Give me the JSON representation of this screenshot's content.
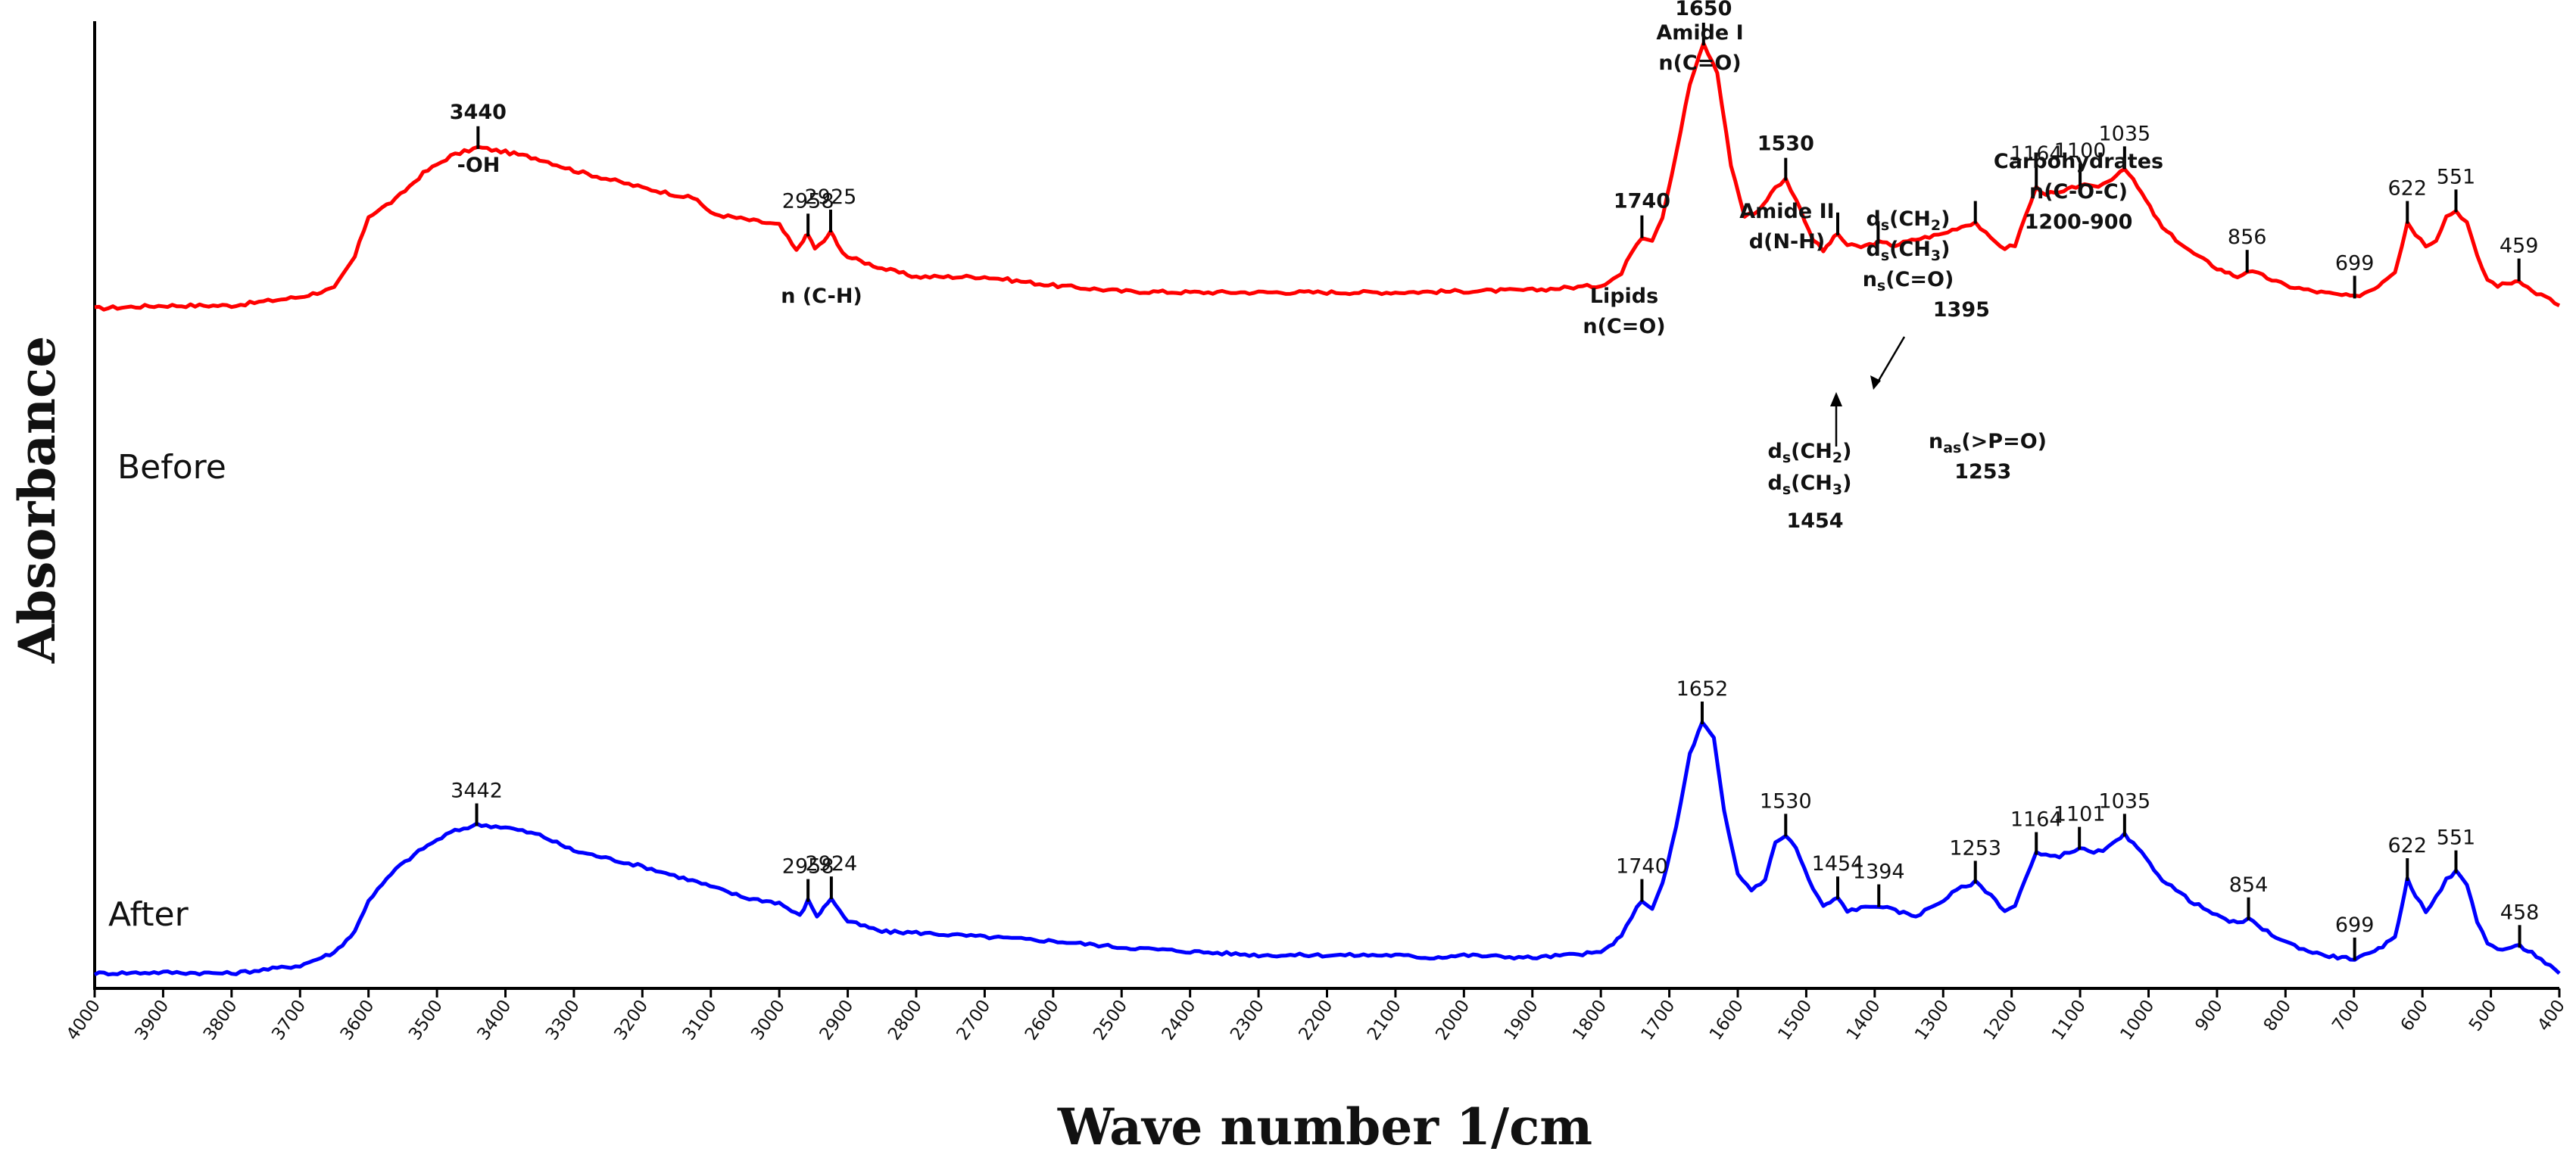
{
  "chart_data": {
    "type": "line",
    "title": "",
    "xlabel": "Wave number 1/cm",
    "ylabel": "Absorbance",
    "xlim": [
      4000,
      400
    ],
    "x_reversed": true,
    "xticks": [
      4000,
      3900,
      3800,
      3700,
      3600,
      3500,
      3400,
      3300,
      3200,
      3100,
      3000,
      2900,
      2800,
      2700,
      2600,
      2500,
      2400,
      2300,
      2200,
      2100,
      2000,
      1900,
      1800,
      1700,
      1600,
      1500,
      1400,
      1300,
      1200,
      1100,
      1000,
      900,
      800,
      700,
      600,
      500,
      400
    ],
    "ylim": [
      0,
      1
    ],
    "series": [
      {
        "name": "Before",
        "color": "#ff0000",
        "points": [
          [
            4000,
            0.49
          ],
          [
            3900,
            0.495
          ],
          [
            3800,
            0.495
          ],
          [
            3700,
            0.51
          ],
          [
            3650,
            0.525
          ],
          [
            3620,
            0.58
          ],
          [
            3600,
            0.65
          ],
          [
            3560,
            0.68
          ],
          [
            3520,
            0.725
          ],
          [
            3480,
            0.755
          ],
          [
            3440,
            0.77
          ],
          [
            3400,
            0.762
          ],
          [
            3350,
            0.75
          ],
          [
            3300,
            0.73
          ],
          [
            3200,
            0.7
          ],
          [
            3120,
            0.68
          ],
          [
            3100,
            0.655
          ],
          [
            3050,
            0.645
          ],
          [
            3000,
            0.635
          ],
          [
            2975,
            0.59
          ],
          [
            2965,
            0.61
          ],
          [
            2958,
            0.618
          ],
          [
            2948,
            0.595
          ],
          [
            2935,
            0.605
          ],
          [
            2925,
            0.625
          ],
          [
            2915,
            0.6
          ],
          [
            2900,
            0.58
          ],
          [
            2850,
            0.56
          ],
          [
            2800,
            0.545
          ],
          [
            2700,
            0.545
          ],
          [
            2600,
            0.53
          ],
          [
            2500,
            0.52
          ],
          [
            2400,
            0.518
          ],
          [
            2300,
            0.518
          ],
          [
            2200,
            0.518
          ],
          [
            2100,
            0.518
          ],
          [
            2000,
            0.52
          ],
          [
            1900,
            0.522
          ],
          [
            1800,
            0.53
          ],
          [
            1770,
            0.55
          ],
          [
            1755,
            0.59
          ],
          [
            1740,
            0.615
          ],
          [
            1725,
            0.61
          ],
          [
            1710,
            0.65
          ],
          [
            1690,
            0.76
          ],
          [
            1670,
            0.88
          ],
          [
            1650,
            0.95
          ],
          [
            1630,
            0.9
          ],
          [
            1610,
            0.74
          ],
          [
            1590,
            0.65
          ],
          [
            1570,
            0.66
          ],
          [
            1545,
            0.7
          ],
          [
            1530,
            0.715
          ],
          [
            1515,
            0.68
          ],
          [
            1490,
            0.61
          ],
          [
            1475,
            0.59
          ],
          [
            1465,
            0.605
          ],
          [
            1454,
            0.62
          ],
          [
            1440,
            0.6
          ],
          [
            1420,
            0.597
          ],
          [
            1395,
            0.605
          ],
          [
            1370,
            0.6
          ],
          [
            1340,
            0.61
          ],
          [
            1300,
            0.62
          ],
          [
            1280,
            0.63
          ],
          [
            1253,
            0.64
          ],
          [
            1230,
            0.61
          ],
          [
            1210,
            0.595
          ],
          [
            1195,
            0.6
          ],
          [
            1180,
            0.65
          ],
          [
            1164,
            0.7
          ],
          [
            1150,
            0.69
          ],
          [
            1130,
            0.69
          ],
          [
            1100,
            0.705
          ],
          [
            1080,
            0.7
          ],
          [
            1060,
            0.71
          ],
          [
            1035,
            0.735
          ],
          [
            1010,
            0.69
          ],
          [
            980,
            0.63
          ],
          [
            940,
            0.59
          ],
          [
            900,
            0.56
          ],
          [
            870,
            0.545
          ],
          [
            856,
            0.555
          ],
          [
            840,
            0.55
          ],
          [
            800,
            0.53
          ],
          [
            760,
            0.52
          ],
          [
            730,
            0.515
          ],
          [
            699,
            0.51
          ],
          [
            670,
            0.525
          ],
          [
            640,
            0.555
          ],
          [
            630,
            0.6
          ],
          [
            622,
            0.64
          ],
          [
            610,
            0.62
          ],
          [
            595,
            0.6
          ],
          [
            580,
            0.61
          ],
          [
            565,
            0.65
          ],
          [
            551,
            0.66
          ],
          [
            535,
            0.64
          ],
          [
            520,
            0.58
          ],
          [
            505,
            0.54
          ],
          [
            490,
            0.53
          ],
          [
            470,
            0.535
          ],
          [
            459,
            0.54
          ],
          [
            440,
            0.52
          ],
          [
            420,
            0.51
          ],
          [
            400,
            0.495
          ]
        ]
      },
      {
        "name": "After",
        "color": "#0000ff",
        "points": [
          [
            4000,
            0.02
          ],
          [
            3900,
            0.022
          ],
          [
            3800,
            0.02
          ],
          [
            3700,
            0.035
          ],
          [
            3650,
            0.06
          ],
          [
            3620,
            0.1
          ],
          [
            3600,
            0.16
          ],
          [
            3560,
            0.22
          ],
          [
            3520,
            0.26
          ],
          [
            3480,
            0.29
          ],
          [
            3442,
            0.305
          ],
          [
            3400,
            0.3
          ],
          [
            3350,
            0.285
          ],
          [
            3300,
            0.255
          ],
          [
            3200,
            0.225
          ],
          [
            3120,
            0.195
          ],
          [
            3050,
            0.165
          ],
          [
            3000,
            0.155
          ],
          [
            2970,
            0.13
          ],
          [
            2958,
            0.16
          ],
          [
            2945,
            0.13
          ],
          [
            2935,
            0.145
          ],
          [
            2924,
            0.165
          ],
          [
            2912,
            0.14
          ],
          [
            2900,
            0.12
          ],
          [
            2850,
            0.1
          ],
          [
            2800,
            0.098
          ],
          [
            2700,
            0.09
          ],
          [
            2600,
            0.082
          ],
          [
            2500,
            0.07
          ],
          [
            2400,
            0.062
          ],
          [
            2300,
            0.055
          ],
          [
            2200,
            0.055
          ],
          [
            2100,
            0.055
          ],
          [
            2050,
            0.05
          ],
          [
            2000,
            0.055
          ],
          [
            1900,
            0.05
          ],
          [
            1800,
            0.06
          ],
          [
            1770,
            0.09
          ],
          [
            1755,
            0.13
          ],
          [
            1740,
            0.16
          ],
          [
            1725,
            0.145
          ],
          [
            1710,
            0.19
          ],
          [
            1690,
            0.3
          ],
          [
            1670,
            0.44
          ],
          [
            1652,
            0.5
          ],
          [
            1635,
            0.47
          ],
          [
            1620,
            0.33
          ],
          [
            1600,
            0.21
          ],
          [
            1580,
            0.18
          ],
          [
            1560,
            0.2
          ],
          [
            1545,
            0.27
          ],
          [
            1530,
            0.285
          ],
          [
            1515,
            0.26
          ],
          [
            1490,
            0.18
          ],
          [
            1475,
            0.15
          ],
          [
            1465,
            0.155
          ],
          [
            1454,
            0.165
          ],
          [
            1440,
            0.14
          ],
          [
            1420,
            0.145
          ],
          [
            1394,
            0.15
          ],
          [
            1370,
            0.14
          ],
          [
            1340,
            0.13
          ],
          [
            1300,
            0.16
          ],
          [
            1280,
            0.18
          ],
          [
            1253,
            0.195
          ],
          [
            1230,
            0.17
          ],
          [
            1210,
            0.14
          ],
          [
            1195,
            0.15
          ],
          [
            1180,
            0.2
          ],
          [
            1164,
            0.25
          ],
          [
            1150,
            0.245
          ],
          [
            1130,
            0.245
          ],
          [
            1101,
            0.26
          ],
          [
            1080,
            0.25
          ],
          [
            1060,
            0.26
          ],
          [
            1035,
            0.285
          ],
          [
            1010,
            0.25
          ],
          [
            980,
            0.2
          ],
          [
            940,
            0.16
          ],
          [
            900,
            0.13
          ],
          [
            870,
            0.115
          ],
          [
            854,
            0.125
          ],
          [
            840,
            0.11
          ],
          [
            800,
            0.08
          ],
          [
            760,
            0.06
          ],
          [
            730,
            0.052
          ],
          [
            699,
            0.048
          ],
          [
            670,
            0.06
          ],
          [
            640,
            0.09
          ],
          [
            630,
            0.15
          ],
          [
            622,
            0.2
          ],
          [
            610,
            0.17
          ],
          [
            595,
            0.14
          ],
          [
            580,
            0.165
          ],
          [
            565,
            0.2
          ],
          [
            551,
            0.215
          ],
          [
            535,
            0.19
          ],
          [
            520,
            0.12
          ],
          [
            505,
            0.08
          ],
          [
            490,
            0.065
          ],
          [
            470,
            0.07
          ],
          [
            458,
            0.072
          ],
          [
            440,
            0.06
          ],
          [
            420,
            0.04
          ],
          [
            400,
            0.02
          ]
        ]
      }
    ],
    "peak_labels_before": [
      {
        "x": 3440,
        "text": "3440"
      },
      {
        "x": 2958,
        "text": "2958"
      },
      {
        "x": 2925,
        "text": "2925"
      },
      {
        "x": 1740,
        "text": "1740"
      },
      {
        "x": 1650,
        "text": "1650"
      },
      {
        "x": 1530,
        "text": "1530"
      },
      {
        "x": 1454,
        "text": "1454"
      },
      {
        "x": 1395,
        "text": "1395"
      },
      {
        "x": 1253,
        "text": "1253"
      },
      {
        "x": 1164,
        "text": "1164"
      },
      {
        "x": 1100,
        "text": "1100"
      },
      {
        "x": 1035,
        "text": "1035"
      },
      {
        "x": 856,
        "text": "856"
      },
      {
        "x": 699,
        "text": "699"
      },
      {
        "x": 622,
        "text": "622"
      },
      {
        "x": 551,
        "text": "551"
      },
      {
        "x": 459,
        "text": "459"
      }
    ],
    "peak_labels_after": [
      {
        "x": 3442,
        "text": "3442"
      },
      {
        "x": 2958,
        "text": "2958"
      },
      {
        "x": 2924,
        "text": "2924"
      },
      {
        "x": 1740,
        "text": "1740"
      },
      {
        "x": 1652,
        "text": "1652"
      },
      {
        "x": 1530,
        "text": "1530"
      },
      {
        "x": 1454,
        "text": "1454"
      },
      {
        "x": 1394,
        "text": "1394"
      },
      {
        "x": 1253,
        "text": "1253"
      },
      {
        "x": 1164,
        "text": "1164"
      },
      {
        "x": 1101,
        "text": "1101"
      },
      {
        "x": 1035,
        "text": "1035"
      },
      {
        "x": 854,
        "text": "854"
      },
      {
        "x": 699,
        "text": "699"
      },
      {
        "x": 622,
        "text": "622"
      },
      {
        "x": 551,
        "text": "551"
      },
      {
        "x": 458,
        "text": "458"
      }
    ],
    "annotations": {
      "oh": "-OH",
      "ch": "n (C-H)",
      "lipids": [
        "Lipids",
        "n(C=O)"
      ],
      "amide1": [
        "Amide I",
        "n(C=O)"
      ],
      "amide2": [
        "Amide II",
        "d(N-H)"
      ],
      "ch2_1395": {
        "line1_main": "d",
        "line1_sub": "s",
        "line1_rest": "(CH",
        "line1_sub2": "2",
        "line1_end": ")",
        "line2_main": "d",
        "line2_sub": "s",
        "line2_rest": "(CH",
        "line2_sub2": "3",
        "line2_end": ")",
        "line3_main": "n",
        "line3_sub": "s",
        "line3_rest": "(C=O)"
      },
      "ch2_1454": {
        "line1_main": "d",
        "line1_sub": "s",
        "line1_rest": "(CH",
        "line1_sub2": "2",
        "line1_end": ")",
        "line2_main": "d",
        "line2_sub": "s",
        "line2_rest": "(CH",
        "line2_sub2": "3",
        "line2_end": ")"
      },
      "po": {
        "main": "n",
        "sub": "as",
        "rest": "(>P=O)"
      },
      "carb": [
        "Carbohydrates",
        "n(C-O-C)",
        "1200-900"
      ]
    }
  }
}
